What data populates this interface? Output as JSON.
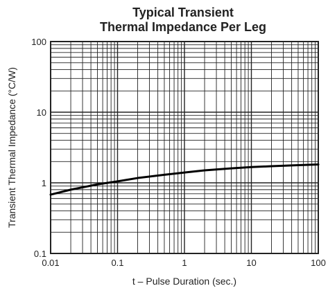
{
  "chart_data": {
    "type": "line",
    "title": "Typical Transient",
    "subtitle": "Thermal Impedance Per Leg",
    "xlabel": "t – Pulse Duration (sec.)",
    "ylabel": "Transient Thermal Impedance (°C/W)",
    "x_scale": "log",
    "y_scale": "log",
    "xlim": [
      0.01,
      100
    ],
    "ylim": [
      0.1,
      100
    ],
    "grid": true,
    "x_ticks": [
      "0.01",
      "0.1",
      "1",
      "10",
      "100"
    ],
    "y_ticks": [
      "0.1",
      "1",
      "10",
      "100"
    ],
    "series": [
      {
        "x": [
          0.01,
          0.02,
          0.05,
          0.1,
          0.2,
          0.5,
          1,
          2,
          5,
          10,
          20,
          50,
          100
        ],
        "y": [
          0.68,
          0.8,
          0.95,
          1.05,
          1.17,
          1.3,
          1.4,
          1.5,
          1.6,
          1.67,
          1.72,
          1.78,
          1.82
        ]
      }
    ],
    "colors": {
      "line": "#000000",
      "grid": "#222222",
      "text": "#222222"
    }
  }
}
